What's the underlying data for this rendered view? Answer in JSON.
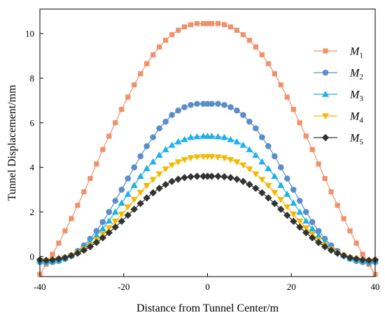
{
  "chart_data": {
    "type": "line",
    "xlabel": "Distance from Tunnel Center/m",
    "ylabel": "Tunnel Displacement/mm",
    "xlim": [
      -40,
      40
    ],
    "ylim": [
      -0.9,
      11.1
    ],
    "xticks": [
      -40,
      -20,
      0,
      20,
      40
    ],
    "yticks": [
      0,
      2,
      4,
      6,
      8,
      10
    ],
    "xtick_labels": [
      "-40",
      "-20",
      "0",
      "20",
      "40"
    ],
    "ytick_labels": [
      "0",
      "2",
      "4",
      "6",
      "8",
      "10"
    ],
    "grid": false,
    "legend_position": "top-right",
    "x": [
      -40,
      -38.5,
      -37,
      -35.5,
      -34,
      -32.5,
      -31,
      -29.5,
      -28,
      -26.5,
      -25,
      -23.5,
      -22,
      -20.5,
      -19,
      -17.5,
      -16,
      -14.5,
      -13,
      -11.5,
      -10,
      -8.5,
      -7,
      -5.5,
      -4,
      -2.5,
      -1,
      0,
      1,
      2.5,
      4,
      5.5,
      7,
      8.5,
      10,
      11.5,
      13,
      14.5,
      16,
      17.5,
      19,
      20.5,
      22,
      23.5,
      25,
      26.5,
      28,
      29.5,
      31,
      32.5,
      34,
      35.5,
      37,
      38.5,
      40
    ],
    "series": [
      {
        "name": "M",
        "subscript": "1",
        "color": "#F0916A",
        "marker": "square",
        "values": [
          -0.8,
          -0.35,
          0.1,
          0.6,
          1.15,
          1.7,
          2.3,
          2.9,
          3.5,
          4.15,
          4.8,
          5.4,
          6.0,
          6.6,
          7.15,
          7.7,
          8.2,
          8.65,
          9.05,
          9.4,
          9.7,
          9.95,
          10.15,
          10.3,
          10.4,
          10.45,
          10.45,
          10.45,
          10.45,
          10.45,
          10.4,
          10.3,
          10.15,
          9.95,
          9.7,
          9.4,
          9.05,
          8.65,
          8.2,
          7.7,
          7.15,
          6.6,
          6.0,
          5.4,
          4.8,
          4.15,
          3.5,
          2.9,
          2.3,
          1.7,
          1.15,
          0.6,
          0.1,
          -0.35,
          -0.8
        ]
      },
      {
        "name": "M",
        "subscript": "2",
        "color": "#5B8DCB",
        "marker": "circle",
        "values": [
          -0.25,
          -0.27,
          -0.25,
          -0.2,
          -0.1,
          0.05,
          0.25,
          0.5,
          0.8,
          1.15,
          1.55,
          2.0,
          2.5,
          3.0,
          3.5,
          4.0,
          4.5,
          4.95,
          5.35,
          5.75,
          6.05,
          6.35,
          6.55,
          6.7,
          6.8,
          6.85,
          6.85,
          6.85,
          6.85,
          6.85,
          6.8,
          6.7,
          6.55,
          6.35,
          6.05,
          5.75,
          5.35,
          4.95,
          4.5,
          4.0,
          3.5,
          3.0,
          2.5,
          2.0,
          1.55,
          1.15,
          0.8,
          0.5,
          0.25,
          0.05,
          -0.1,
          -0.2,
          -0.25,
          -0.27,
          -0.25
        ]
      },
      {
        "name": "M",
        "subscript": "3",
        "color": "#1EB0E8",
        "marker": "triangle-up",
        "values": [
          -0.2,
          -0.22,
          -0.2,
          -0.15,
          -0.08,
          0.05,
          0.2,
          0.4,
          0.65,
          0.95,
          1.25,
          1.6,
          2.0,
          2.4,
          2.8,
          3.2,
          3.6,
          3.95,
          4.25,
          4.55,
          4.8,
          5.0,
          5.15,
          5.25,
          5.35,
          5.38,
          5.4,
          5.4,
          5.4,
          5.38,
          5.35,
          5.25,
          5.15,
          5.0,
          4.8,
          4.55,
          4.25,
          3.95,
          3.6,
          3.2,
          2.8,
          2.4,
          2.0,
          1.6,
          1.25,
          0.95,
          0.65,
          0.4,
          0.2,
          0.05,
          -0.08,
          -0.15,
          -0.2,
          -0.22,
          -0.2
        ]
      },
      {
        "name": "M",
        "subscript": "4",
        "color": "#F5B800",
        "marker": "triangle-down",
        "values": [
          -0.18,
          -0.2,
          -0.18,
          -0.13,
          -0.06,
          0.04,
          0.17,
          0.33,
          0.52,
          0.75,
          1.0,
          1.28,
          1.58,
          1.9,
          2.22,
          2.55,
          2.87,
          3.18,
          3.45,
          3.7,
          3.92,
          4.1,
          4.24,
          4.34,
          4.42,
          4.46,
          4.48,
          4.48,
          4.48,
          4.46,
          4.42,
          4.34,
          4.24,
          4.1,
          3.92,
          3.7,
          3.45,
          3.18,
          2.87,
          2.55,
          2.22,
          1.9,
          1.58,
          1.28,
          1.0,
          0.75,
          0.52,
          0.33,
          0.17,
          0.04,
          -0.06,
          -0.13,
          -0.18,
          -0.2,
          -0.18
        ]
      },
      {
        "name": "M",
        "subscript": "5",
        "color": "#333333",
        "marker": "diamond",
        "values": [
          -0.15,
          -0.17,
          -0.15,
          -0.1,
          -0.05,
          0.04,
          0.15,
          0.28,
          0.44,
          0.63,
          0.84,
          1.07,
          1.32,
          1.58,
          1.85,
          2.12,
          2.38,
          2.63,
          2.86,
          3.06,
          3.23,
          3.37,
          3.47,
          3.54,
          3.58,
          3.6,
          3.6,
          3.6,
          3.6,
          3.6,
          3.58,
          3.54,
          3.47,
          3.37,
          3.23,
          3.06,
          2.86,
          2.63,
          2.38,
          2.12,
          1.85,
          1.58,
          1.32,
          1.07,
          0.84,
          0.63,
          0.44,
          0.28,
          0.15,
          0.04,
          -0.05,
          -0.1,
          -0.15,
          -0.17,
          -0.15
        ]
      }
    ]
  }
}
